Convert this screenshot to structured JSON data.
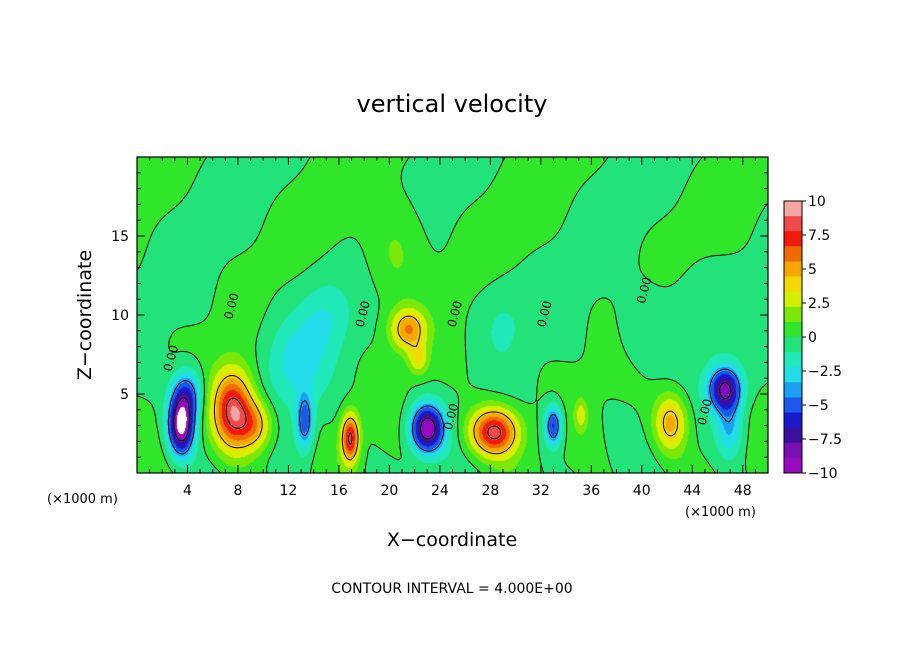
{
  "chart_data": {
    "type": "heatmap",
    "title": "vertical velocity",
    "xlabel": "X−coordinate",
    "ylabel": "Z−coordinate",
    "x_unit_left": "(×1000 m)",
    "x_unit_right": "(×1000 m)",
    "footer": "CONTOUR INTERVAL = 4.000E+00",
    "xlim": [
      0,
      50
    ],
    "ylim": [
      0,
      20
    ],
    "x_ticks": [
      4,
      8,
      12,
      16,
      20,
      24,
      28,
      32,
      36,
      40,
      44,
      48
    ],
    "y_ticks": [
      5,
      10,
      15
    ],
    "contour_interval": 4.0,
    "zero_contour_label": "0.00",
    "colorbar": {
      "ticks": [
        "10",
        "7.5",
        "5",
        "2.5",
        "0",
        "−2.5",
        "−5",
        "−7.5",
        "−10"
      ],
      "colors": [
        "#f7a6a6",
        "#ef4a4a",
        "#f21a0a",
        "#f06a00",
        "#f5a800",
        "#f4d800",
        "#d6ef00",
        "#7be80a",
        "#2fe62a",
        "#22e27a",
        "#20e8b8",
        "#22dcea",
        "#1aa0f0",
        "#1a58ee",
        "#1a1acb",
        "#3a109e",
        "#7a10b4",
        "#9a0ac0"
      ]
    },
    "features": [
      {
        "x": 3.5,
        "z": 3.0,
        "w": -10.5,
        "sx": 1.0,
        "sz": 1.8
      },
      {
        "x": 4.0,
        "z": 5.0,
        "w": -5.0,
        "sx": 1.2,
        "sz": 1.6
      },
      {
        "x": 7.6,
        "z": 4.0,
        "w": 8.5,
        "sx": 1.6,
        "sz": 2.5
      },
      {
        "x": 9.4,
        "z": 3.0,
        "w": 4.5,
        "sx": 1.4,
        "sz": 1.6
      },
      {
        "x": 13.3,
        "z": 3.2,
        "w": -5.0,
        "sx": 0.7,
        "sz": 1.8
      },
      {
        "x": 16.9,
        "z": 2.2,
        "w": 8.5,
        "sx": 0.7,
        "sz": 1.5
      },
      {
        "x": 21.5,
        "z": 9.1,
        "w": 5.5,
        "sx": 1.4,
        "sz": 1.3
      },
      {
        "x": 22.3,
        "z": 7.2,
        "w": 3.0,
        "sx": 0.8,
        "sz": 1.0
      },
      {
        "x": 23.0,
        "z": 2.8,
        "w": -9.5,
        "sx": 1.3,
        "sz": 1.5
      },
      {
        "x": 28.3,
        "z": 2.6,
        "w": 8.5,
        "sx": 1.9,
        "sz": 1.5
      },
      {
        "x": 33.0,
        "z": 3.0,
        "w": -6.0,
        "sx": 0.7,
        "sz": 1.3
      },
      {
        "x": 35.2,
        "z": 3.7,
        "w": 2.5,
        "sx": 0.5,
        "sz": 1.0
      },
      {
        "x": 42.3,
        "z": 3.2,
        "w": 5.0,
        "sx": 1.3,
        "sz": 1.8
      },
      {
        "x": 46.6,
        "z": 5.3,
        "w": -8.5,
        "sx": 1.3,
        "sz": 1.4
      },
      {
        "x": 47.0,
        "z": 2.8,
        "w": -3.5,
        "sx": 1.1,
        "sz": 1.8
      },
      {
        "x": 12.5,
        "z": 7.0,
        "w": -2.5,
        "sx": 2.5,
        "sz": 3.0
      },
      {
        "x": 15.0,
        "z": 10.0,
        "w": -1.8,
        "sx": 2.0,
        "sz": 2.5
      },
      {
        "x": 20.5,
        "z": 14.0,
        "w": 1.5,
        "sx": 2.0,
        "sz": 3.0
      },
      {
        "x": 29.0,
        "z": 9.5,
        "w": -1.2,
        "sx": 2.0,
        "sz": 2.5
      },
      {
        "x": 40.0,
        "z": 9.0,
        "w": -1.0,
        "sx": 2.0,
        "sz": 2.5
      },
      {
        "x": 44.5,
        "z": 10.0,
        "w": -0.9,
        "sx": 3.0,
        "sz": 3.0
      }
    ]
  }
}
